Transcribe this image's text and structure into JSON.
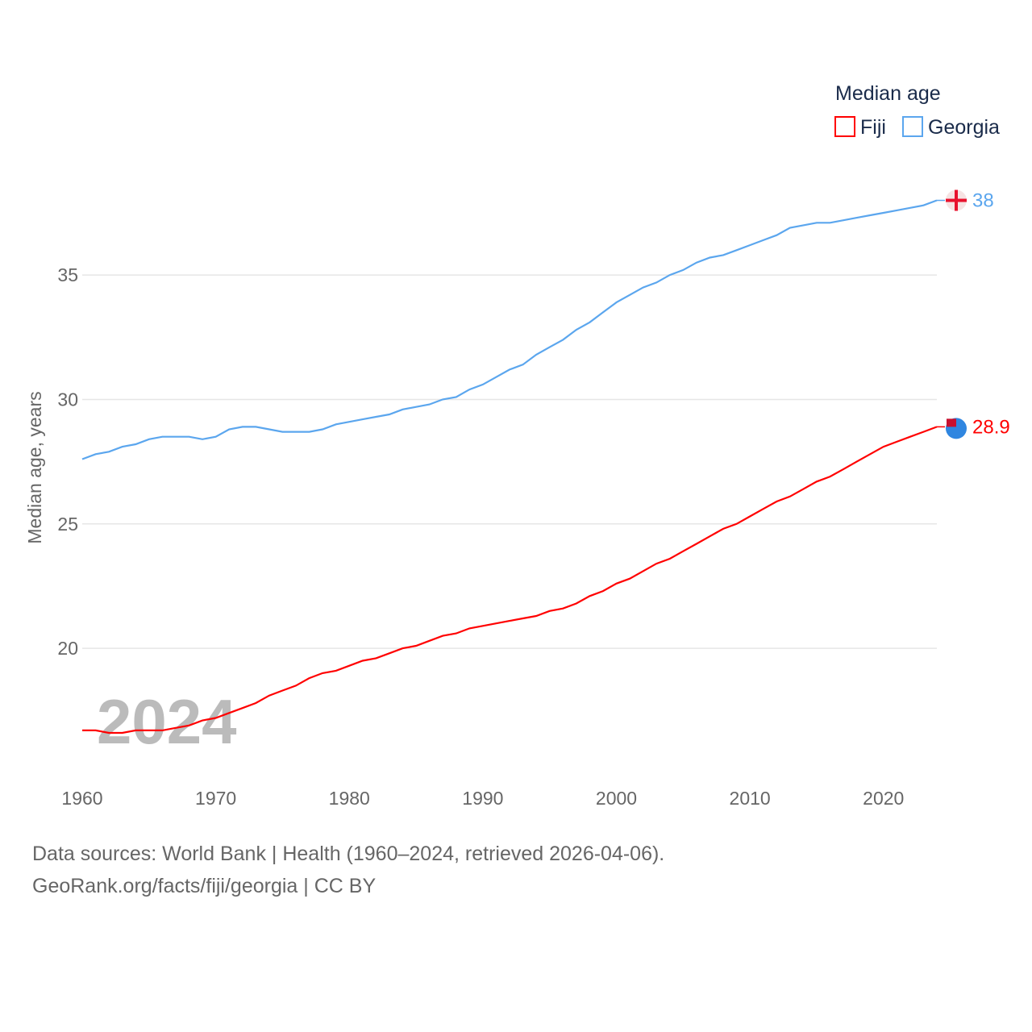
{
  "chart_data": {
    "type": "line",
    "title": "",
    "legend_title": "Median age",
    "legend_placement": "top-right",
    "xlabel": "",
    "ylabel": "Median age, years",
    "xlim": [
      1960,
      2024
    ],
    "ylim": [
      15,
      40
    ],
    "x_ticks": [
      "1960",
      "1970",
      "1980",
      "1990",
      "2000",
      "2010",
      "2020"
    ],
    "y_ticks": [
      "20",
      "25",
      "30",
      "35"
    ],
    "grid": true,
    "year_watermark": "2024",
    "x": [
      1960,
      1961,
      1962,
      1963,
      1964,
      1965,
      1966,
      1967,
      1968,
      1969,
      1970,
      1971,
      1972,
      1973,
      1974,
      1975,
      1976,
      1977,
      1978,
      1979,
      1980,
      1981,
      1982,
      1983,
      1984,
      1985,
      1986,
      1987,
      1988,
      1989,
      1990,
      1991,
      1992,
      1993,
      1994,
      1995,
      1996,
      1997,
      1998,
      1999,
      2000,
      2001,
      2002,
      2003,
      2004,
      2005,
      2006,
      2007,
      2008,
      2009,
      2010,
      2011,
      2012,
      2013,
      2014,
      2015,
      2016,
      2017,
      2018,
      2019,
      2020,
      2021,
      2022,
      2023,
      2024
    ],
    "series": [
      {
        "name": "Fiji",
        "color": "#ff0000",
        "end_label": "28.9",
        "values": [
          16.7,
          16.7,
          16.6,
          16.6,
          16.7,
          16.7,
          16.7,
          16.8,
          16.9,
          17.1,
          17.2,
          17.4,
          17.6,
          17.8,
          18.1,
          18.3,
          18.5,
          18.8,
          19.0,
          19.1,
          19.3,
          19.5,
          19.6,
          19.8,
          20.0,
          20.1,
          20.3,
          20.5,
          20.6,
          20.8,
          20.9,
          21.0,
          21.1,
          21.2,
          21.3,
          21.5,
          21.6,
          21.8,
          22.1,
          22.3,
          22.6,
          22.8,
          23.1,
          23.4,
          23.6,
          23.9,
          24.2,
          24.5,
          24.8,
          25.0,
          25.3,
          25.6,
          25.9,
          26.1,
          26.4,
          26.7,
          26.9,
          27.2,
          27.5,
          27.8,
          28.1,
          28.3,
          28.5,
          28.7,
          28.9
        ]
      },
      {
        "name": "Georgia",
        "color": "#5ba6ee",
        "end_label": "38",
        "values": [
          27.6,
          27.8,
          27.9,
          28.1,
          28.2,
          28.4,
          28.5,
          28.5,
          28.5,
          28.4,
          28.5,
          28.8,
          28.9,
          28.9,
          28.8,
          28.7,
          28.7,
          28.7,
          28.8,
          29.0,
          29.1,
          29.2,
          29.3,
          29.4,
          29.6,
          29.7,
          29.8,
          30.0,
          30.1,
          30.4,
          30.6,
          30.9,
          31.2,
          31.4,
          31.8,
          32.1,
          32.4,
          32.8,
          33.1,
          33.5,
          33.9,
          34.2,
          34.5,
          34.7,
          35.0,
          35.2,
          35.5,
          35.7,
          35.8,
          36.0,
          36.2,
          36.4,
          36.6,
          36.9,
          37.0,
          37.1,
          37.1,
          37.2,
          37.3,
          37.4,
          37.5,
          37.6,
          37.7,
          37.8,
          38.0
        ]
      }
    ]
  },
  "footer": {
    "line1": "Data sources: World Bank | Health (1960–2024, retrieved 2026-04-06).",
    "line2": "GeoRank.org/facts/fiji/georgia | CC BY"
  }
}
